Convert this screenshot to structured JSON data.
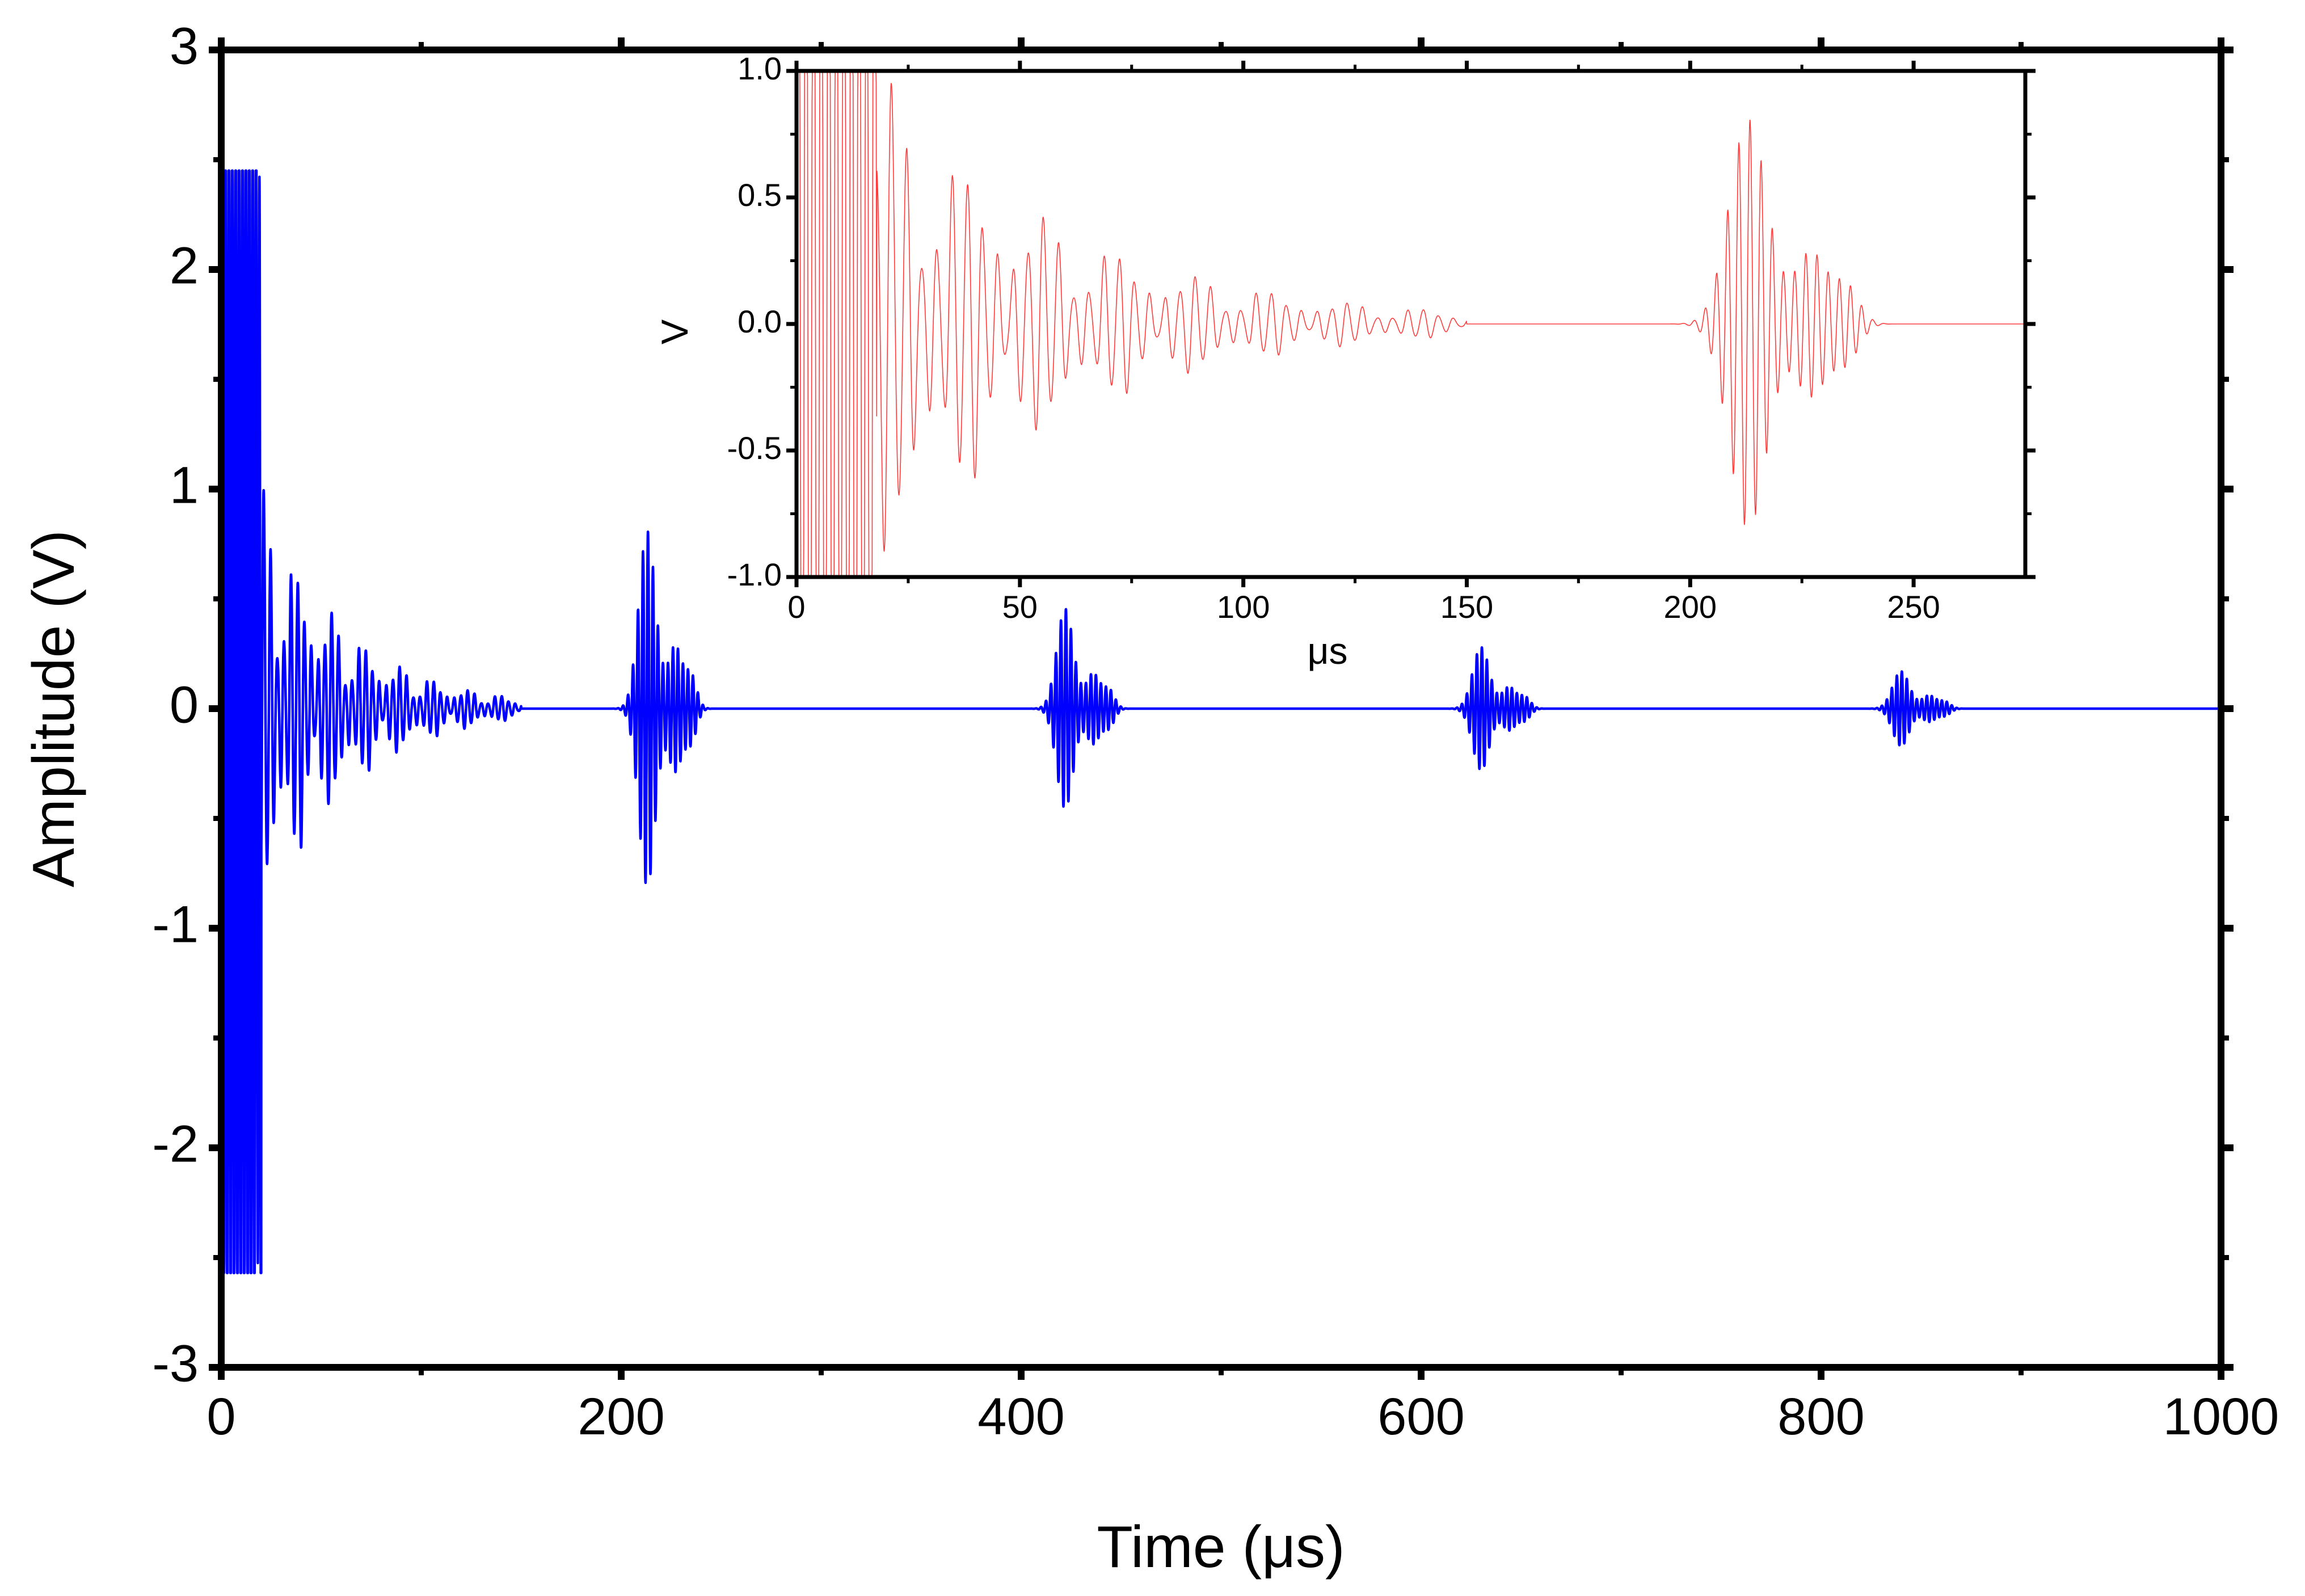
{
  "chart_data": [
    {
      "id": "main",
      "type": "line",
      "xlabel": "Time (μs)",
      "ylabel": "Amplitude (V)",
      "xlim": [
        0,
        1000
      ],
      "ylim": [
        -3,
        3
      ],
      "xticks": [
        0,
        200,
        400,
        600,
        800,
        1000
      ],
      "xtick_labels": [
        "0",
        "200",
        "400",
        "600",
        "800",
        "1000"
      ],
      "yticks": [
        -3,
        -2,
        -1,
        0,
        1,
        2,
        3
      ],
      "ytick_labels": [
        "-3",
        "-2",
        "-1",
        "0",
        "1",
        "2",
        "3"
      ],
      "grid": false,
      "legend": "none",
      "series": [
        {
          "color": "#0000ff",
          "initial_burst": {
            "start": 0,
            "end": 20,
            "peak_max": 2.45,
            "peak_min": -2.57,
            "period": 1.7
          },
          "decay_tail": {
            "start": 18,
            "end": 150,
            "amplitude_start": 0.9,
            "amplitude_end": 0.04
          },
          "echoes": [
            {
              "center": 213,
              "peak_max": 0.82,
              "peak_min": -0.8
            },
            {
              "center": 422,
              "peak_max": 0.46,
              "peak_min": -0.45
            },
            {
              "center": 630,
              "peak_max": 0.28,
              "peak_min": -0.28
            },
            {
              "center": 840,
              "peak_max": 0.17,
              "peak_min": -0.17
            }
          ],
          "echo_period": 2.5,
          "echo_duration": 35
        }
      ]
    },
    {
      "id": "inset",
      "type": "line",
      "xlabel": "μs",
      "ylabel": "V",
      "xlim": [
        0,
        275
      ],
      "ylim": [
        -1.0,
        1.0
      ],
      "xticks": [
        0,
        50,
        100,
        150,
        200,
        250
      ],
      "xtick_labels": [
        "0",
        "50",
        "100",
        "150",
        "200",
        "250"
      ],
      "yticks": [
        -1.0,
        -0.5,
        0.0,
        0.5,
        1.0
      ],
      "ytick_labels": [
        "-1.0",
        "-0.5",
        "0.0",
        "0.5",
        "1.0"
      ],
      "grid": false,
      "legend": "none",
      "series": [
        {
          "color": "#ff3b3b",
          "initial_burst": {
            "start": 0,
            "end": 18,
            "peak_max": 1.0,
            "peak_min": -1.0,
            "period": 1.7
          },
          "decay_tail": {
            "start": 18,
            "end": 150,
            "amplitude_start": 0.9,
            "amplitude_end": 0.04
          },
          "echoes": [
            {
              "center": 213,
              "peak_max": 0.82,
              "peak_min": -0.8
            }
          ],
          "echo_period": 2.5,
          "echo_duration": 35
        }
      ]
    }
  ]
}
